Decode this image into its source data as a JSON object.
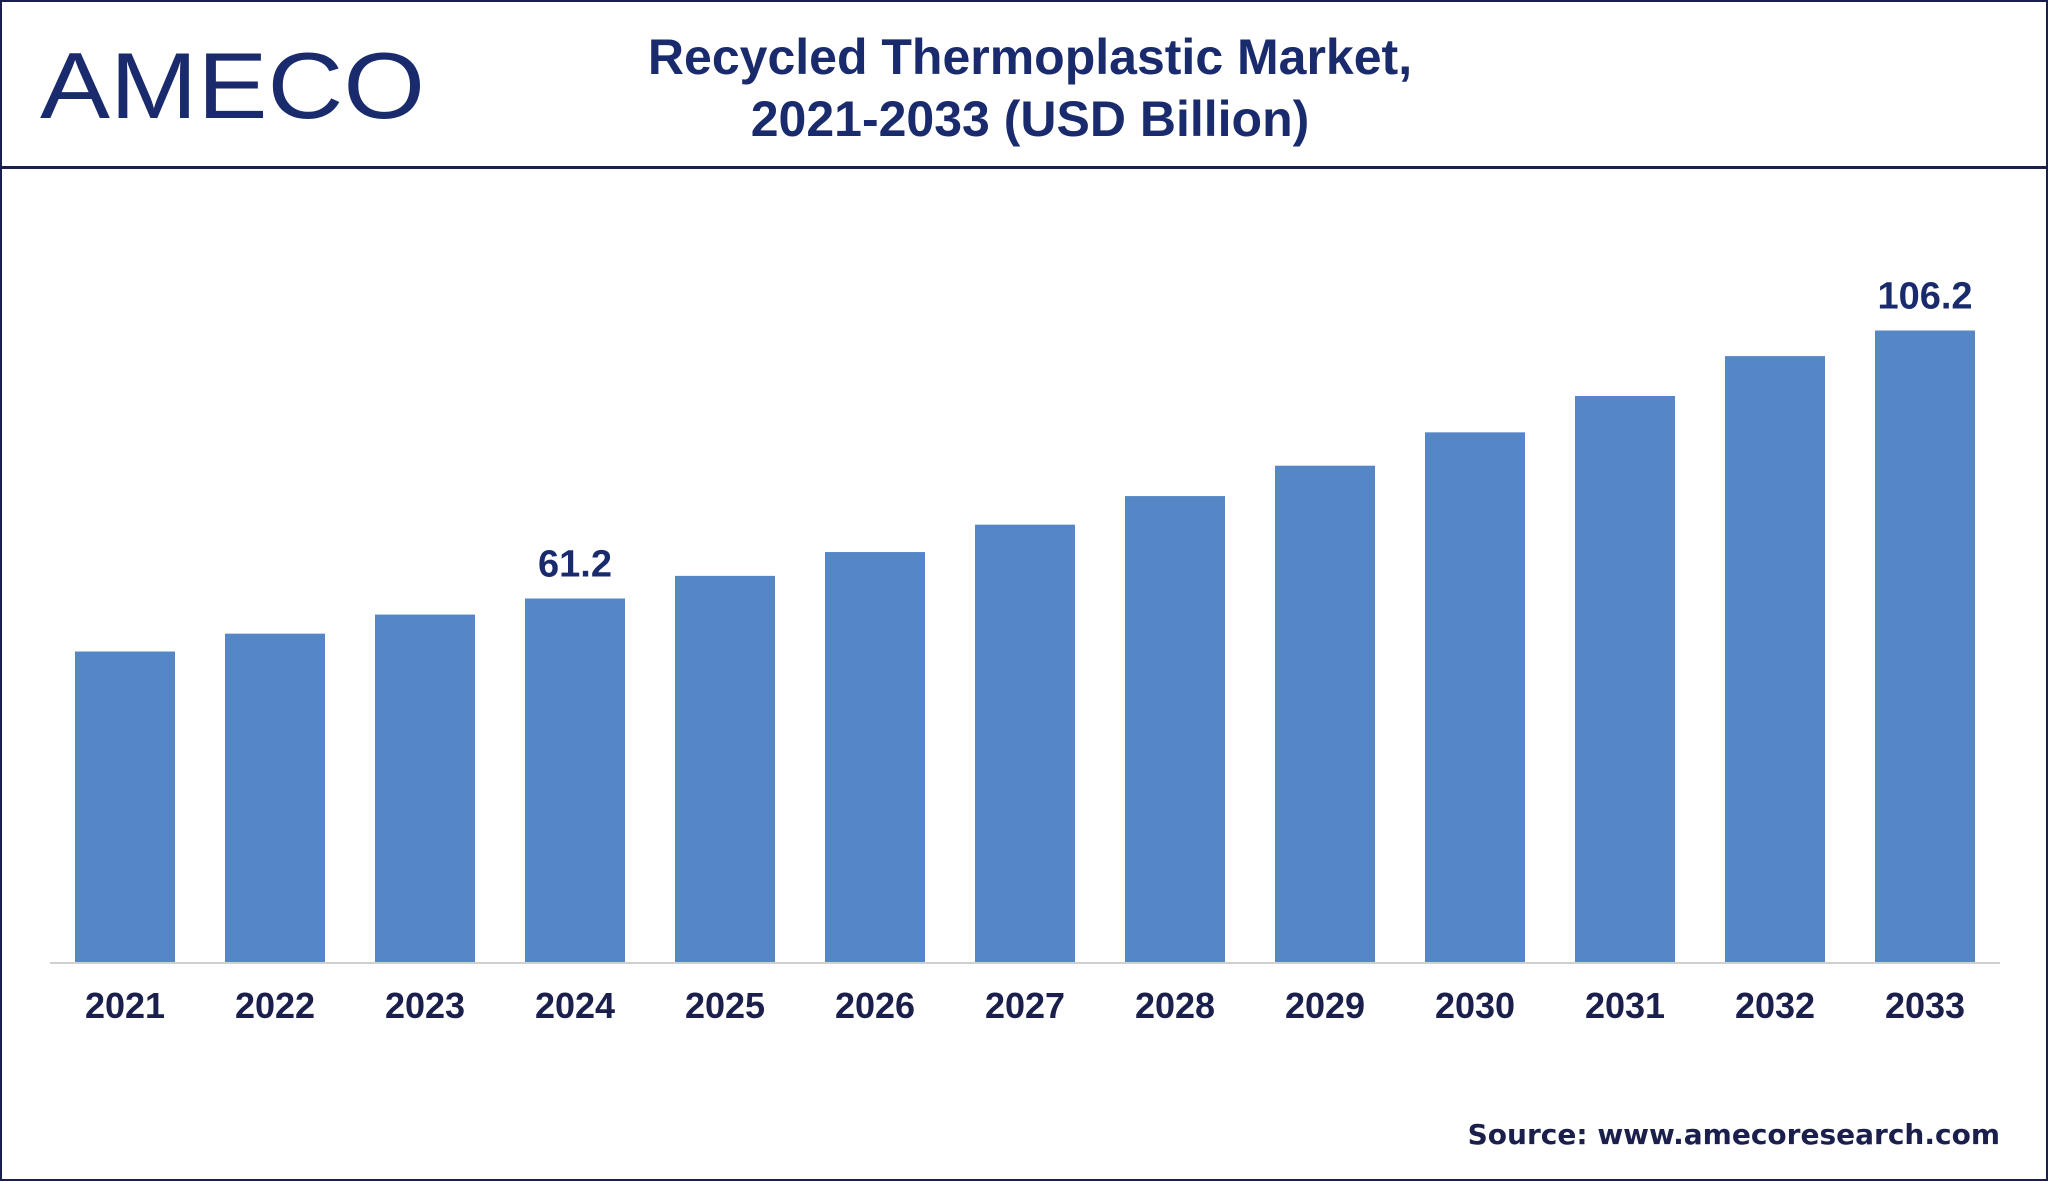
{
  "brand": {
    "logo_text": "AMECO",
    "color": "#1a2b6d"
  },
  "title": {
    "line1": "Recycled Thermoplastic Market,",
    "line2": "2021-2033 (USD Billion)"
  },
  "source": "Source: www.amecoresearch.com",
  "colors": {
    "bar": "#5586c6",
    "text": "#1a1f4b",
    "axis": "#d0d0d0"
  },
  "chart_data": {
    "type": "bar",
    "title": "Recycled Thermoplastic Market, 2021-2033 (USD Billion)",
    "xlabel": "",
    "ylabel": "",
    "categories": [
      "2021",
      "2022",
      "2023",
      "2024",
      "2025",
      "2026",
      "2027",
      "2028",
      "2029",
      "2030",
      "2031",
      "2032",
      "2033"
    ],
    "values": [
      52.3,
      55.3,
      58.5,
      61.2,
      65.0,
      69.0,
      73.6,
      78.4,
      83.5,
      89.1,
      95.2,
      101.9,
      106.2
    ],
    "data_labels": [
      {
        "index": 3,
        "text": "61.2"
      },
      {
        "index": 12,
        "text": "106.2"
      }
    ],
    "ylim": [
      0,
      113
    ],
    "grid": false,
    "legend": "none"
  }
}
